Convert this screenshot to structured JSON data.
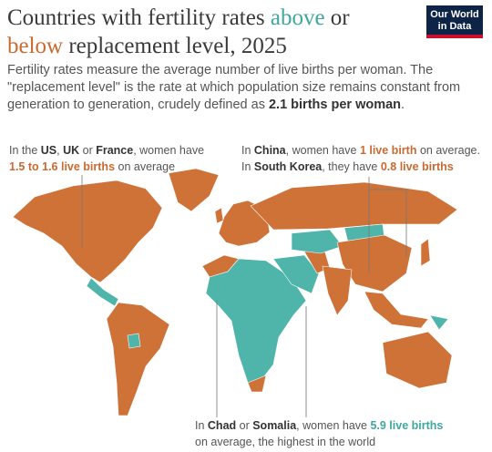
{
  "title": [
    "Countries with fertility rates ",
    "above",
    " or ",
    "below",
    " replacement level, 2025"
  ],
  "logo": [
    "Our World",
    "in Data"
  ],
  "subtitle": [
    "Fertility rates measure the average number of live births per woman. The \"replacement level\" is the rate at which population size remains constant from generation to generation, crudely defined as ",
    "2.1 births per woman",
    "."
  ],
  "annotations": [
    {
      "lines": [
        [
          "In the ",
          "US",
          ", ",
          "UK",
          " or ",
          "France",
          ", women have"
        ],
        [
          "1.5 to 1.6 live births",
          " on average"
        ]
      ]
    },
    {
      "lines": [
        [
          "In ",
          "China",
          ", women have ",
          "1 live birth",
          " on average."
        ],
        [
          "In ",
          "South Korea",
          ", they have ",
          "0.8 live births"
        ]
      ]
    },
    {
      "lines": [
        [
          "In ",
          "Chad",
          " or ",
          "Somalia",
          ", women have ",
          "5.9 live births"
        ],
        [
          "on average, the highest in the world"
        ]
      ]
    }
  ]
}
